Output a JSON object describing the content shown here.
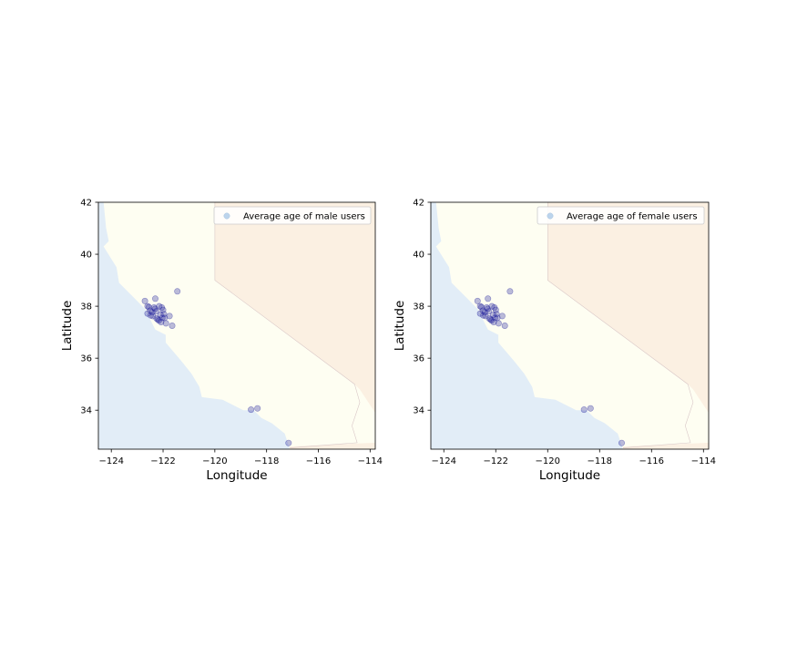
{
  "chart_data": [
    {
      "type": "scatter",
      "title": "",
      "xlabel": "Longitude",
      "ylabel": "Latitude",
      "xlim": [
        -124.5,
        -113.8
      ],
      "ylim": [
        32.5,
        42.0
      ],
      "xticks": [
        "−124",
        "−122",
        "−120",
        "−118",
        "−116",
        "−114"
      ],
      "yticks": [
        "34",
        "36",
        "38",
        "40",
        "42"
      ],
      "xtick_values": [
        -124,
        -122,
        -120,
        -118,
        -116,
        -114
      ],
      "ytick_values": [
        34,
        36,
        38,
        40,
        42
      ],
      "grid": false,
      "background": "California / Nevada basemap",
      "legend": {
        "position": "upper right",
        "entries": [
          "Average age of male users"
        ]
      },
      "colors": {
        "marker": "#1f1f9c",
        "legend_marker": "#bcd4ec",
        "california": "#fefef2",
        "nevada": "#fbf0e2",
        "ocean": "#e2edf7"
      },
      "series": [
        {
          "name": "Average age of male users",
          "points": [
            [
              -122.42,
              37.77
            ],
            [
              -122.27,
              37.8
            ],
            [
              -122.08,
              37.39
            ],
            [
              -121.89,
              37.34
            ],
            [
              -122.2,
              37.49
            ],
            [
              -122.05,
              37.95
            ],
            [
              -122.55,
              37.97
            ],
            [
              -122.7,
              38.2
            ],
            [
              -122.3,
              38.29
            ],
            [
              -121.94,
              37.55
            ],
            [
              -122.03,
              37.55
            ],
            [
              -122.16,
              37.45
            ],
            [
              -122.48,
              37.65
            ],
            [
              -122.1,
              37.67
            ],
            [
              -122.25,
              37.53
            ],
            [
              -122.6,
              38.0
            ],
            [
              -122.35,
              37.95
            ],
            [
              -121.97,
              37.7
            ],
            [
              -122.0,
              37.86
            ],
            [
              -122.5,
              37.83
            ],
            [
              -121.75,
              37.62
            ],
            [
              -122.15,
              38.0
            ],
            [
              -121.65,
              37.25
            ],
            [
              -122.4,
              37.62
            ],
            [
              -121.45,
              38.57
            ],
            [
              -118.35,
              34.07
            ],
            [
              -118.6,
              34.02
            ],
            [
              -117.15,
              32.74
            ],
            [
              -122.31,
              37.9
            ],
            [
              -122.6,
              37.72
            ]
          ]
        }
      ]
    },
    {
      "type": "scatter",
      "title": "",
      "xlabel": "Longitude",
      "ylabel": "Latitude",
      "xlim": [
        -124.5,
        -113.8
      ],
      "ylim": [
        32.5,
        42.0
      ],
      "xticks": [
        "−124",
        "−122",
        "−120",
        "−118",
        "−116",
        "−114"
      ],
      "yticks": [
        "34",
        "36",
        "38",
        "40",
        "42"
      ],
      "xtick_values": [
        -124,
        -122,
        -120,
        -118,
        -116,
        -114
      ],
      "ytick_values": [
        34,
        36,
        38,
        40,
        42
      ],
      "grid": false,
      "background": "California / Nevada basemap",
      "legend": {
        "position": "upper right",
        "entries": [
          "Average age of female users"
        ]
      },
      "colors": {
        "marker": "#1f1f9c",
        "legend_marker": "#bcd4ec",
        "california": "#fefef2",
        "nevada": "#fbf0e2",
        "ocean": "#e2edf7"
      },
      "series": [
        {
          "name": "Average age of female users",
          "points": [
            [
              -122.42,
              37.77
            ],
            [
              -122.27,
              37.8
            ],
            [
              -122.08,
              37.39
            ],
            [
              -121.89,
              37.34
            ],
            [
              -122.2,
              37.49
            ],
            [
              -122.05,
              37.95
            ],
            [
              -122.55,
              37.97
            ],
            [
              -122.7,
              38.2
            ],
            [
              -122.3,
              38.29
            ],
            [
              -121.94,
              37.55
            ],
            [
              -122.03,
              37.55
            ],
            [
              -122.16,
              37.45
            ],
            [
              -122.48,
              37.65
            ],
            [
              -122.1,
              37.67
            ],
            [
              -122.25,
              37.53
            ],
            [
              -122.6,
              38.0
            ],
            [
              -122.35,
              37.95
            ],
            [
              -121.97,
              37.7
            ],
            [
              -122.0,
              37.86
            ],
            [
              -122.5,
              37.83
            ],
            [
              -121.75,
              37.62
            ],
            [
              -122.15,
              38.0
            ],
            [
              -121.65,
              37.25
            ],
            [
              -122.4,
              37.62
            ],
            [
              -121.45,
              38.57
            ],
            [
              -118.35,
              34.07
            ],
            [
              -118.6,
              34.02
            ],
            [
              -117.15,
              32.74
            ],
            [
              -122.31,
              37.9
            ],
            [
              -122.6,
              37.72
            ]
          ]
        }
      ]
    }
  ]
}
